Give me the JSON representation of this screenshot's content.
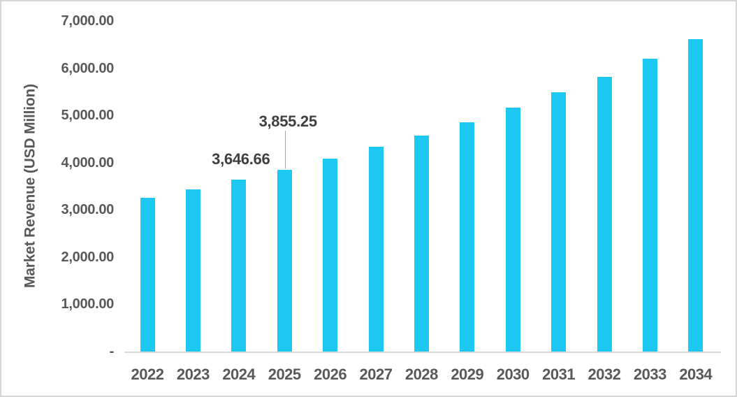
{
  "chart_data": {
    "type": "bar",
    "title": "",
    "xlabel": "",
    "ylabel": "Market Revenue (USD Million)",
    "categories": [
      "2022",
      "2023",
      "2024",
      "2025",
      "2026",
      "2027",
      "2028",
      "2029",
      "2030",
      "2031",
      "2032",
      "2033",
      "2034"
    ],
    "values": [
      3250,
      3435,
      3646.66,
      3855.25,
      4090,
      4330,
      4570,
      4860,
      5160,
      5490,
      5820,
      6200,
      6610
    ],
    "ylim": [
      0,
      7000
    ],
    "y_tick_labels": [
      "7,000.00",
      "6,000.00",
      "5,000.00",
      "4,000.00",
      "3,000.00",
      "2,000.00",
      "1,000.00",
      "-"
    ],
    "annotations": [
      {
        "category": "2024",
        "text": "3,646.66"
      },
      {
        "category": "2025",
        "text": "3,855.25"
      }
    ],
    "grid": false,
    "legend": "none",
    "bar_color": "#1dc9f2",
    "axis_line_color": "#d9d9d9",
    "text_color": "#595959",
    "data_label_color": "#3f3f3f",
    "leader_line_color": "#a6a6a6"
  }
}
